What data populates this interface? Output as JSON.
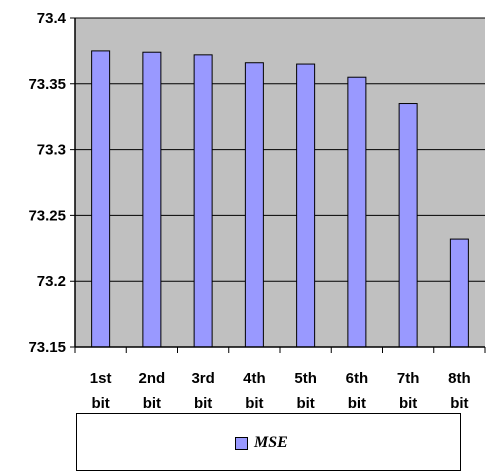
{
  "chart_data": {
    "type": "bar",
    "categories": [
      "1st bit",
      "2nd bit",
      "3rd bit",
      "4th bit",
      "5th bit",
      "6th bit",
      "7th bit",
      "8th bit"
    ],
    "category_lines": [
      [
        "1st",
        "bit"
      ],
      [
        "2nd",
        "bit"
      ],
      [
        "3rd",
        "bit"
      ],
      [
        "4th",
        "bit"
      ],
      [
        "5th",
        "bit"
      ],
      [
        "6th",
        "bit"
      ],
      [
        "7th",
        "bit"
      ],
      [
        "8th",
        "bit"
      ]
    ],
    "series": [
      {
        "name": "MSE",
        "values": [
          73.375,
          73.374,
          73.372,
          73.366,
          73.365,
          73.355,
          73.335,
          73.232
        ]
      }
    ],
    "ylim": [
      73.15,
      73.4
    ],
    "yticks": [
      73.15,
      73.2,
      73.25,
      73.3,
      73.35,
      73.4
    ],
    "ytick_labels": [
      "73.15",
      "73.2",
      "73.25",
      "73.3",
      "73.35",
      "73.4"
    ],
    "grid": true,
    "legend_position": "bottom",
    "colors": {
      "bar": "#9999ff",
      "plot_background": "#c0c0c0",
      "grid": "#000000"
    }
  }
}
